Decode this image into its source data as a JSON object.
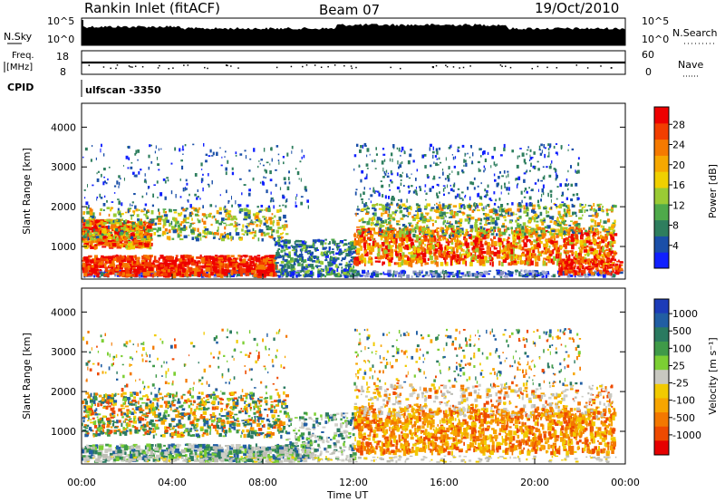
{
  "header": {
    "station": "Rankin Inlet (fitACF)",
    "beam": "Beam 07",
    "date": "19/Oct/2010"
  },
  "top_panels": {
    "nsky_label": "N.Sky",
    "nsky_ticks": [
      "10^5",
      "10^0"
    ],
    "nsearch_label": "N.Search",
    "freq_label_1": "Freq.",
    "freq_label_2": "[MHz]",
    "freq_ticks": [
      "18",
      "8"
    ],
    "nave_ticks": [
      "60",
      "0"
    ],
    "nave_label": "Nave",
    "cpid_label": "CPID",
    "cpid_value": "ulfscan  -3350"
  },
  "chart_data": [
    {
      "type": "heatmap",
      "name": "power",
      "ylabel": "Slant Range [km]",
      "xlabel": "",
      "y_ticks": [
        "1000",
        "2000",
        "3000",
        "4000"
      ],
      "ylim": [
        180,
        4600
      ],
      "colorbar_label": "Power [dB]",
      "colorbar_ticks": [
        "4",
        "8",
        "12",
        "16",
        "20",
        "24",
        "28"
      ],
      "colorbar_colors": [
        "#1020ff",
        "#1a4fa8",
        "#2e7e5e",
        "#4faa4a",
        "#9acb34",
        "#f0d000",
        "#f6a800",
        "#f57a00",
        "#f23e00",
        "#ee0000"
      ]
    },
    {
      "type": "heatmap",
      "name": "velocity",
      "ylabel": "Slant Range [km]",
      "xlabel": "Time UT",
      "y_ticks": [
        "1000",
        "2000",
        "3000",
        "4000"
      ],
      "ylim": [
        180,
        4600
      ],
      "x_ticks": [
        "00:00",
        "04:00",
        "08:00",
        "12:00",
        "16:00",
        "20:00",
        "00:00"
      ],
      "colorbar_label": "Velocity [m s⁻¹]",
      "colorbar_ticks": [
        "1000",
        "500",
        "100",
        "25",
        "-25",
        "-100",
        "-500",
        "-1000"
      ],
      "colorbar_colors": [
        "#1c3cb8",
        "#215ea3",
        "#2a7a60",
        "#3f9a48",
        "#7ccf33",
        "#c8c8c0",
        "#f1ca00",
        "#f7a500",
        "#f37800",
        "#ee4a00",
        "#e60000"
      ]
    }
  ]
}
